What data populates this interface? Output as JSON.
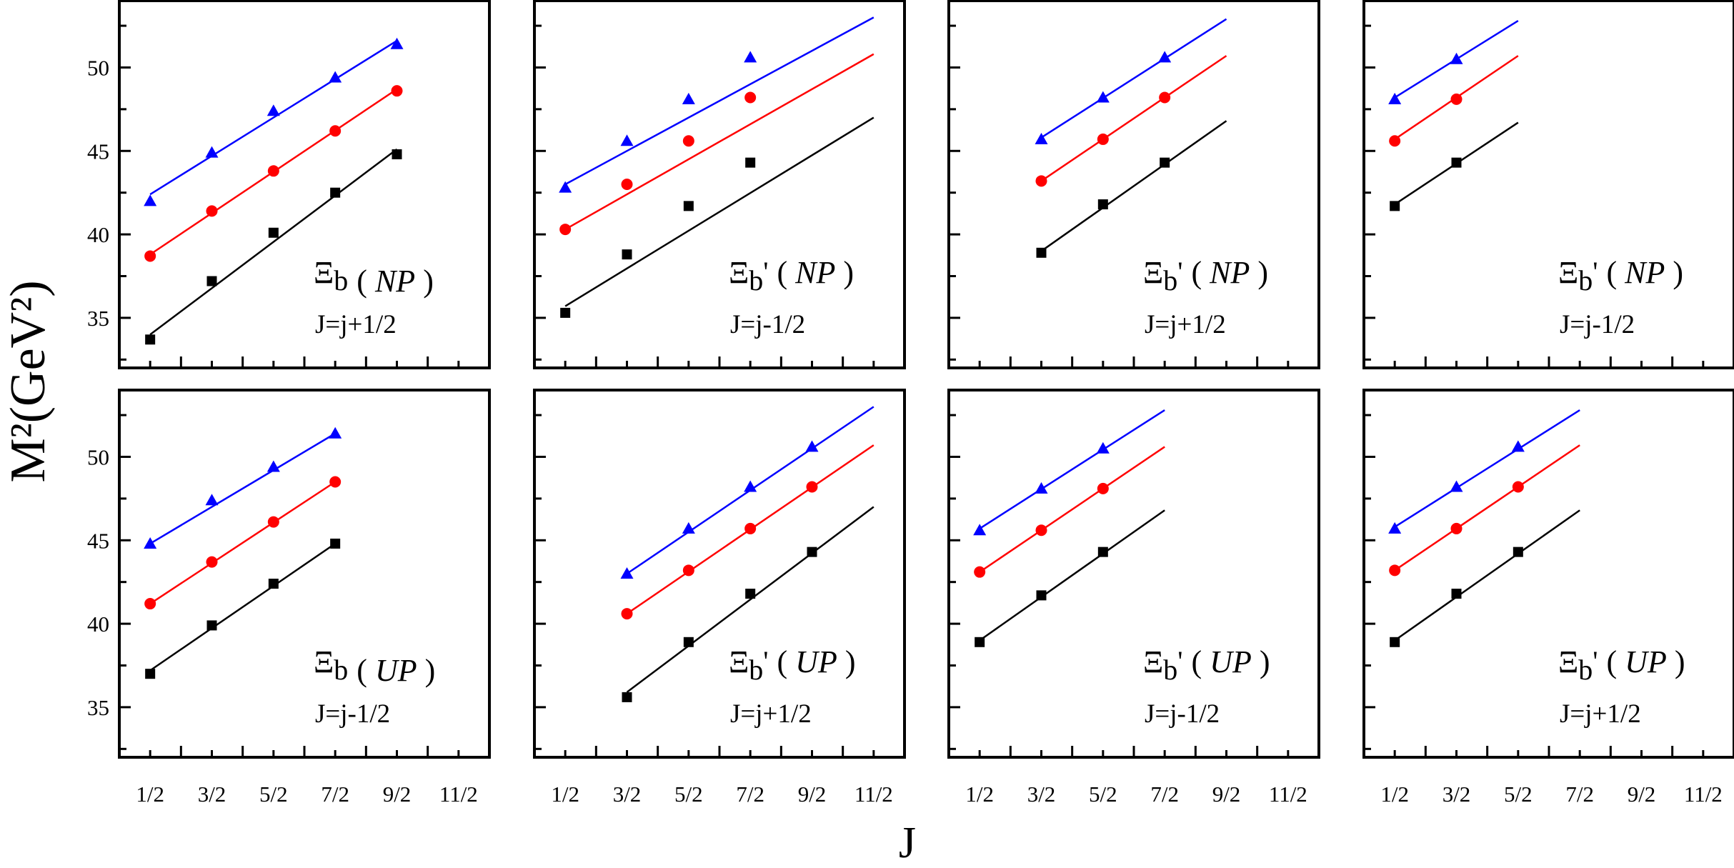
{
  "chart_data": {
    "type": "line",
    "title": "",
    "xlabel": "J",
    "ylabel": "M²(GeV²)",
    "xlim": [
      0,
      6
    ],
    "ylim": [
      32,
      54
    ],
    "grid": false,
    "xtick_labels": [
      "1/2",
      "3/2",
      "5/2",
      "7/2",
      "9/2",
      "11/2"
    ],
    "xtick_values": [
      0.5,
      1.5,
      2.5,
      3.5,
      4.5,
      5.5
    ],
    "ytick_values": [
      35,
      40,
      45,
      50
    ],
    "ytick_labels": [
      "35",
      "40",
      "45",
      "50"
    ],
    "panels": [
      {
        "particle": "Ξ",
        "sub": "b",
        "prime": "",
        "method": "NP",
        "jlabel": "J=j+1/2",
        "series": [
          {
            "marker": "square",
            "color": "#000000",
            "points": [
              [
                0.5,
                33.7
              ],
              [
                1.5,
                37.2
              ],
              [
                2.5,
                40.1
              ],
              [
                3.5,
                42.5
              ],
              [
                4.5,
                44.8
              ]
            ],
            "fit": [
              [
                0.5,
                34.0
              ],
              [
                4.5,
                45.1
              ]
            ]
          },
          {
            "marker": "circle",
            "color": "#ff0000",
            "points": [
              [
                0.5,
                38.7
              ],
              [
                1.5,
                41.4
              ],
              [
                2.5,
                43.8
              ],
              [
                3.5,
                46.2
              ],
              [
                4.5,
                48.6
              ]
            ],
            "fit": [
              [
                0.5,
                38.8
              ],
              [
                4.5,
                48.7
              ]
            ]
          },
          {
            "marker": "triangle",
            "color": "#0000ff",
            "points": [
              [
                0.5,
                42.0
              ],
              [
                1.5,
                44.9
              ],
              [
                2.5,
                47.4
              ],
              [
                3.5,
                49.4
              ],
              [
                4.5,
                51.4
              ]
            ],
            "fit": [
              [
                0.5,
                42.4
              ],
              [
                4.5,
                51.6
              ]
            ]
          }
        ]
      },
      {
        "particle": "Ξ",
        "sub": "b",
        "prime": "'",
        "method": "NP",
        "jlabel": "J=j-1/2",
        "series": [
          {
            "marker": "square",
            "color": "#000000",
            "points": [
              [
                0.5,
                35.3
              ],
              [
                1.5,
                38.8
              ],
              [
                2.5,
                41.7
              ],
              [
                3.5,
                44.3
              ]
            ],
            "fit": [
              [
                0.5,
                35.7
              ],
              [
                5.5,
                47.0
              ]
            ]
          },
          {
            "marker": "circle",
            "color": "#ff0000",
            "points": [
              [
                0.5,
                40.3
              ],
              [
                1.5,
                43.0
              ],
              [
                2.5,
                45.6
              ],
              [
                3.5,
                48.2
              ]
            ],
            "fit": [
              [
                0.5,
                40.3
              ],
              [
                5.5,
                50.8
              ]
            ]
          },
          {
            "marker": "triangle",
            "color": "#0000ff",
            "points": [
              [
                0.5,
                42.8
              ],
              [
                1.5,
                45.6
              ],
              [
                2.5,
                48.1
              ],
              [
                3.5,
                50.6
              ]
            ],
            "fit": [
              [
                0.5,
                43.0
              ],
              [
                5.5,
                53.0
              ]
            ]
          }
        ]
      },
      {
        "particle": "Ξ",
        "sub": "b",
        "prime": "'",
        "method": "NP",
        "jlabel": "J=j+1/2",
        "series": [
          {
            "marker": "square",
            "color": "#000000",
            "points": [
              [
                1.5,
                38.9
              ],
              [
                2.5,
                41.8
              ],
              [
                3.5,
                44.3
              ]
            ],
            "fit": [
              [
                1.5,
                39.0
              ],
              [
                4.5,
                46.8
              ]
            ]
          },
          {
            "marker": "circle",
            "color": "#ff0000",
            "points": [
              [
                1.5,
                43.2
              ],
              [
                2.5,
                45.7
              ],
              [
                3.5,
                48.2
              ]
            ],
            "fit": [
              [
                1.5,
                43.2
              ],
              [
                4.5,
                50.7
              ]
            ]
          },
          {
            "marker": "triangle",
            "color": "#0000ff",
            "points": [
              [
                1.5,
                45.7
              ],
              [
                2.5,
                48.2
              ],
              [
                3.5,
                50.6
              ]
            ],
            "fit": [
              [
                1.5,
                45.8
              ],
              [
                4.5,
                52.9
              ]
            ]
          }
        ]
      },
      {
        "particle": "Ξ",
        "sub": "b",
        "prime": "'",
        "method": "NP",
        "jlabel": "J=j-1/2",
        "series": [
          {
            "marker": "square",
            "color": "#000000",
            "points": [
              [
                0.5,
                41.7
              ],
              [
                1.5,
                44.3
              ]
            ],
            "fit": [
              [
                0.5,
                41.8
              ],
              [
                2.5,
                46.7
              ]
            ]
          },
          {
            "marker": "circle",
            "color": "#ff0000",
            "points": [
              [
                0.5,
                45.6
              ],
              [
                1.5,
                48.1
              ]
            ],
            "fit": [
              [
                0.5,
                45.7
              ],
              [
                2.5,
                50.7
              ]
            ]
          },
          {
            "marker": "triangle",
            "color": "#0000ff",
            "points": [
              [
                0.5,
                48.1
              ],
              [
                1.5,
                50.5
              ]
            ],
            "fit": [
              [
                0.5,
                48.2
              ],
              [
                2.5,
                52.8
              ]
            ]
          }
        ]
      },
      {
        "particle": "Ξ",
        "sub": "b",
        "prime": "",
        "method": "UP",
        "jlabel": "J=j-1/2",
        "series": [
          {
            "marker": "square",
            "color": "#000000",
            "points": [
              [
                0.5,
                37.0
              ],
              [
                1.5,
                39.9
              ],
              [
                2.5,
                42.4
              ],
              [
                3.5,
                44.8
              ]
            ],
            "fit": [
              [
                0.5,
                37.2
              ],
              [
                3.5,
                44.8
              ]
            ]
          },
          {
            "marker": "circle",
            "color": "#ff0000",
            "points": [
              [
                0.5,
                41.2
              ],
              [
                1.5,
                43.7
              ],
              [
                2.5,
                46.1
              ],
              [
                3.5,
                48.5
              ]
            ],
            "fit": [
              [
                0.5,
                41.2
              ],
              [
                3.5,
                48.5
              ]
            ]
          },
          {
            "marker": "triangle",
            "color": "#0000ff",
            "points": [
              [
                0.5,
                44.8
              ],
              [
                1.5,
                47.4
              ],
              [
                2.5,
                49.4
              ],
              [
                3.5,
                51.4
              ]
            ],
            "fit": [
              [
                0.5,
                44.8
              ],
              [
                3.5,
                51.4
              ]
            ]
          }
        ]
      },
      {
        "particle": "Ξ",
        "sub": "b",
        "prime": "'",
        "method": "UP",
        "jlabel": "J=j+1/2",
        "series": [
          {
            "marker": "square",
            "color": "#000000",
            "points": [
              [
                1.5,
                35.6
              ],
              [
                2.5,
                38.9
              ],
              [
                3.5,
                41.8
              ],
              [
                4.5,
                44.3
              ]
            ],
            "fit": [
              [
                1.5,
                35.9
              ],
              [
                5.5,
                47.0
              ]
            ]
          },
          {
            "marker": "circle",
            "color": "#ff0000",
            "points": [
              [
                1.5,
                40.6
              ],
              [
                2.5,
                43.2
              ],
              [
                3.5,
                45.7
              ],
              [
                4.5,
                48.2
              ]
            ],
            "fit": [
              [
                1.5,
                40.6
              ],
              [
                5.5,
                50.7
              ]
            ]
          },
          {
            "marker": "triangle",
            "color": "#0000ff",
            "points": [
              [
                1.5,
                43.0
              ],
              [
                2.5,
                45.7
              ],
              [
                3.5,
                48.2
              ],
              [
                4.5,
                50.6
              ]
            ],
            "fit": [
              [
                1.5,
                43.0
              ],
              [
                5.5,
                53.0
              ]
            ]
          }
        ]
      },
      {
        "particle": "Ξ",
        "sub": "b",
        "prime": "'",
        "method": "UP",
        "jlabel": "J=j-1/2",
        "series": [
          {
            "marker": "square",
            "color": "#000000",
            "points": [
              [
                0.5,
                38.9
              ],
              [
                1.5,
                41.7
              ],
              [
                2.5,
                44.3
              ]
            ],
            "fit": [
              [
                0.5,
                39.0
              ],
              [
                3.5,
                46.8
              ]
            ]
          },
          {
            "marker": "circle",
            "color": "#ff0000",
            "points": [
              [
                0.5,
                43.1
              ],
              [
                1.5,
                45.6
              ],
              [
                2.5,
                48.1
              ]
            ],
            "fit": [
              [
                0.5,
                43.1
              ],
              [
                3.5,
                50.6
              ]
            ]
          },
          {
            "marker": "triangle",
            "color": "#0000ff",
            "points": [
              [
                0.5,
                45.6
              ],
              [
                1.5,
                48.1
              ],
              [
                2.5,
                50.5
              ]
            ],
            "fit": [
              [
                0.5,
                45.7
              ],
              [
                3.5,
                52.8
              ]
            ]
          }
        ]
      },
      {
        "particle": "Ξ",
        "sub": "b",
        "prime": "'",
        "method": "UP",
        "jlabel": "J=j+1/2",
        "series": [
          {
            "marker": "square",
            "color": "#000000",
            "points": [
              [
                0.5,
                38.9
              ],
              [
                1.5,
                41.8
              ],
              [
                2.5,
                44.3
              ]
            ],
            "fit": [
              [
                0.5,
                39.0
              ],
              [
                3.5,
                46.8
              ]
            ]
          },
          {
            "marker": "circle",
            "color": "#ff0000",
            "points": [
              [
                0.5,
                43.2
              ],
              [
                1.5,
                45.7
              ],
              [
                2.5,
                48.2
              ]
            ],
            "fit": [
              [
                0.5,
                43.2
              ],
              [
                3.5,
                50.7
              ]
            ]
          },
          {
            "marker": "triangle",
            "color": "#0000ff",
            "points": [
              [
                0.5,
                45.7
              ],
              [
                1.5,
                48.2
              ],
              [
                2.5,
                50.6
              ]
            ],
            "fit": [
              [
                0.5,
                45.8
              ],
              [
                3.5,
                52.8
              ]
            ]
          }
        ]
      }
    ]
  }
}
